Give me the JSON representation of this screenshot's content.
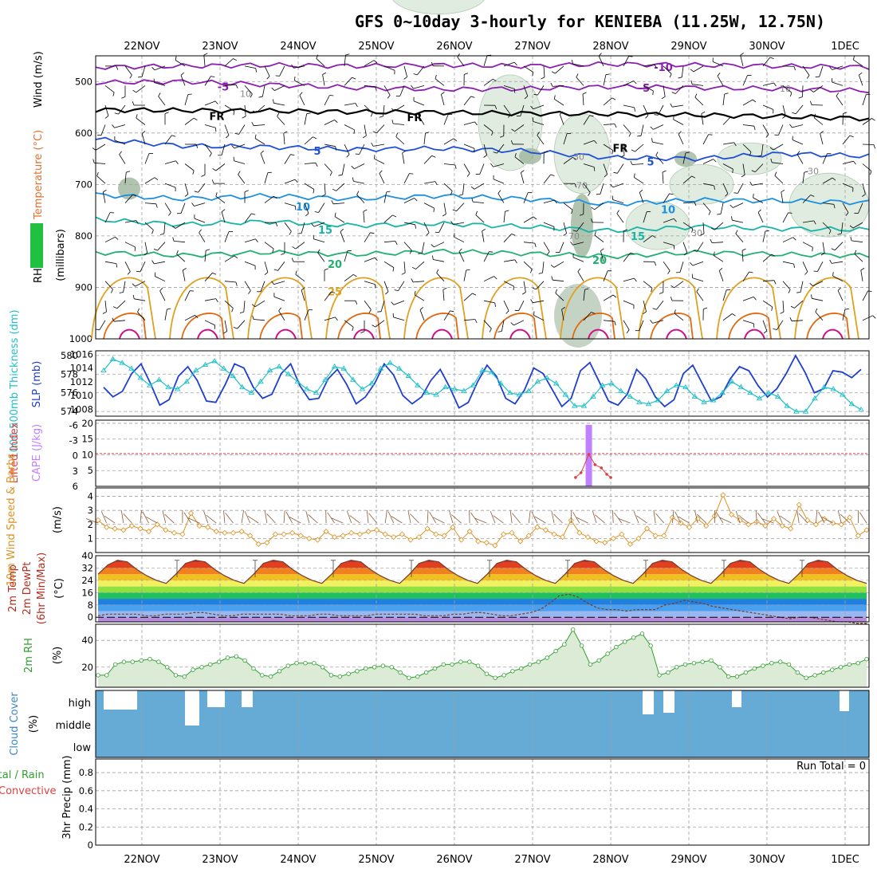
{
  "title": "GFS 0~10day 3-hourly for KENIEBA (11.25W, 12.75N)",
  "dates": [
    "22NOV",
    "23NOV",
    "24NOV",
    "25NOV",
    "26NOV",
    "27NOV",
    "28NOV",
    "29NOV",
    "30NOV",
    "1DEC"
  ],
  "run_total": "Run Total = 0",
  "colors": {
    "purple": "#8a1fb0",
    "black": "#000000",
    "blue": "#1f4fd8",
    "lightblue": "#1e90e0",
    "teal": "#18b4a8",
    "green": "#20b070",
    "orange": "#e0a020",
    "darkorange": "#e06a10",
    "magenta": "#d0108a",
    "rh_fill": "#dcebdc",
    "rh_dark": "#9cb59c",
    "cloud": "#66aad6",
    "cape": "#c080ff",
    "slp": "#1f3fd0",
    "thick": "#20c0c8",
    "wind": "#e09020",
    "rh2m": "#30a030",
    "grid": "#a0a0a0"
  },
  "chart_data": [
    {
      "type": "contour",
      "panel": "upper-air",
      "ylabel_parts": [
        "RH (%)",
        "Temperature (°C)",
        "Wind (m/s)"
      ],
      "ylabel_right": "(millibars)",
      "ylim": [
        1000,
        450
      ],
      "yticks": [
        500,
        600,
        700,
        800,
        900,
        1000
      ],
      "contour_labels": {
        "temperature": [
          "-10",
          "-5",
          "FR",
          "5",
          "10",
          "15",
          "20",
          "25"
        ],
        "rh": [
          "10",
          "30",
          "70",
          "70",
          "30"
        ]
      },
      "isotherms": [
        {
          "name": "-10",
          "level": [
            472,
            470,
            468,
            470,
            468,
            470,
            466,
            468,
            470,
            472
          ]
        },
        {
          "name": "-5",
          "level": [
            502,
            500,
            506,
            512,
            515,
            514,
            510,
            512,
            514,
            518
          ]
        },
        {
          "name": "FR",
          "level": [
            555,
            556,
            557,
            559,
            560,
            562,
            563,
            565,
            568,
            572
          ]
        },
        {
          "name": "5",
          "level": [
            612,
            625,
            627,
            632,
            630,
            635,
            648,
            650,
            640,
            645
          ]
        },
        {
          "name": "10",
          "level": [
            720,
            728,
            722,
            728,
            722,
            728,
            738,
            730,
            732,
            735
          ]
        },
        {
          "name": "15",
          "level": [
            768,
            778,
            772,
            780,
            776,
            782,
            790,
            782,
            786,
            788
          ]
        },
        {
          "name": "20",
          "level": [
            832,
            838,
            832,
            836,
            830,
            834,
            840,
            832,
            836,
            838
          ]
        }
      ]
    },
    {
      "type": "line",
      "panel": "thickness-slp",
      "ylabel_left": "1000-500mb Thickness (dm)",
      "ylabel_right": "SLP (mb)",
      "yticks_left": [
        574,
        576,
        578,
        580
      ],
      "yticks_right": [
        1008,
        1010,
        1012,
        1014,
        1016
      ],
      "series": [
        {
          "name": "SLP (mb)",
          "values": [
            1011.2,
            1009.8,
            1010.6,
            1013.2,
            1014.6,
            1011.8,
            1008.6,
            1009.4,
            1012.8,
            1014.2,
            1012.2,
            1009.2,
            1009.0,
            1011.6,
            1014.6,
            1014.0,
            1011.2,
            1009.6,
            1010.2,
            1013.2,
            1014.6,
            1011.4,
            1009.4,
            1009.6,
            1012.4,
            1013.8,
            1011.6,
            1008.8,
            1009.8,
            1011.8,
            1014.6,
            1013.0,
            1010.0,
            1008.8,
            1009.8,
            1012.2,
            1013.8,
            1011.2,
            1008.2,
            1009.0,
            1012.0,
            1014.4,
            1012.8,
            1009.6,
            1008.8,
            1010.8,
            1014.0,
            1013.2,
            1010.8,
            1008.4,
            1009.6,
            1013.6,
            1014.8,
            1012.0,
            1009.2,
            1008.6,
            1010.2,
            1013.8,
            1012.4,
            1009.8,
            1008.4,
            1009.4,
            1013.2,
            1014.4,
            1011.8,
            1009.2,
            1009.8,
            1012.4,
            1014.2,
            1013.6,
            1011.4,
            1009.8,
            1011.0,
            1013.2,
            1015.8,
            1013.4,
            1010.4,
            1011.0,
            1013.6,
            1013.4,
            1012.6,
            1013.8
          ]
        },
        {
          "name": "1000-500mb Thickness (dm)",
          "values": [
            578.4,
            579.6,
            579.2,
            578.6,
            577.6,
            576.8,
            577.4,
            576.6,
            576.4,
            577.2,
            578.4,
            579.0,
            579.4,
            578.6,
            577.8,
            576.6,
            576.0,
            577.2,
            578.4,
            578.8,
            578.0,
            577.2,
            576.4,
            576.0,
            577.4,
            578.8,
            578.6,
            577.4,
            576.4,
            577.0,
            578.6,
            579.2,
            578.6,
            577.8,
            576.8,
            576.0,
            575.8,
            576.6,
            576.4,
            576.2,
            576.8,
            578.4,
            578.2,
            577.0,
            576.0,
            575.8,
            576.2,
            577.2,
            577.6,
            577.0,
            575.8,
            574.6,
            574.6,
            575.6,
            576.8,
            577.0,
            576.2,
            575.6,
            575.0,
            574.8,
            575.2,
            576.2,
            576.8,
            576.6,
            575.6,
            575.0,
            575.2,
            576.0,
            577.2,
            576.6,
            576.0,
            575.4,
            576.0,
            575.6,
            574.6,
            574.0,
            574.0,
            575.4,
            576.6,
            576.4,
            575.8,
            574.8,
            574.2
          ]
        }
      ]
    },
    {
      "type": "bar",
      "panel": "cape-li",
      "ylabel_left": "Lifted Index",
      "ylabel_right": "CAPE (J/kg)",
      "yticks_left": [
        "-6",
        "-3",
        "0",
        "3",
        "6"
      ],
      "yticks_right": [
        5,
        10,
        15,
        20
      ],
      "cape_bar": {
        "date_index": 5.72,
        "value": 19.5
      },
      "lifted_index_series": [
        {
          "t": 5.55,
          "v": 6
        },
        {
          "t": 5.62,
          "v": 4.8
        },
        {
          "t": 5.72,
          "v": 0.2
        },
        {
          "t": 5.8,
          "v": 2.8
        },
        {
          "t": 5.88,
          "v": 3.6
        },
        {
          "t": 5.95,
          "v": 5.2
        },
        {
          "t": 6.0,
          "v": 6
        }
      ],
      "li_reference_line": 0
    },
    {
      "type": "line",
      "panel": "wind",
      "ylabel_left": "10m Wind Speed & Barbs",
      "ylabel_unit": "(m/s)",
      "yticks": [
        1,
        2,
        3,
        4
      ],
      "series": [
        {
          "name": "10m Wind Speed",
          "values": [
            2.3,
            1.8,
            1.7,
            1.6,
            1.9,
            1.7,
            1.5,
            2.0,
            1.6,
            1.4,
            1.3,
            2.8,
            1.9,
            1.8,
            1.5,
            1.4,
            1.4,
            1.5,
            1.2,
            0.6,
            0.7,
            1.3,
            1.3,
            1.4,
            1.2,
            1.0,
            0.9,
            1.5,
            1.1,
            1.2,
            1.4,
            1.3,
            1.5,
            1.6,
            1.3,
            1.1,
            1.3,
            0.9,
            1.1,
            1.7,
            1.3,
            1.2,
            1.8,
            0.9,
            1.5,
            0.8,
            0.7,
            0.5,
            1.3,
            1.4,
            0.8,
            1.2,
            1.8,
            1.6,
            1.3,
            1.1,
            2.3,
            1.4,
            1.1,
            0.8,
            0.7,
            1.0,
            1.3,
            0.6,
            1.0,
            1.7,
            1.2,
            1.2,
            2.5,
            2.1,
            1.8,
            2.4,
            1.9,
            2.6,
            4.1,
            2.7,
            2.3,
            2.0,
            2.2,
            1.9,
            2.4,
            1.9,
            1.7,
            3.4,
            2.3,
            2.0,
            2.4,
            2.1,
            2.0,
            2.5,
            1.2,
            1.6
          ]
        }
      ]
    },
    {
      "type": "area",
      "panel": "temperature",
      "ylabel_parts": [
        "2m Temp",
        "2m DewPt",
        "(6hr Min/Max)"
      ],
      "ylabel_unit": "(°C)",
      "yticks": [
        0,
        8,
        16,
        24,
        32,
        40
      ],
      "series": [
        {
          "name": "2m Temp",
          "values": [
            28,
            34,
            37,
            36,
            31,
            27,
            24,
            22,
            28,
            35,
            37,
            36,
            31,
            27,
            24,
            22,
            28,
            35,
            37,
            36,
            31,
            27,
            24,
            22,
            28,
            35,
            37,
            36,
            31,
            27,
            24,
            22,
            28,
            35,
            37,
            36,
            31,
            27,
            24,
            22,
            28,
            35,
            37,
            36,
            31,
            27,
            24,
            22,
            28,
            35,
            37,
            36,
            31,
            27,
            24,
            22,
            28,
            35,
            37,
            36,
            31,
            27,
            24,
            22,
            28,
            35,
            37,
            36,
            31,
            27,
            24,
            22,
            28,
            35,
            37,
            36,
            31,
            27,
            24,
            22
          ]
        },
        {
          "name": "2m DewPt",
          "values": [
            1,
            2,
            2,
            2,
            2,
            1,
            1,
            2,
            2,
            2,
            3,
            3,
            2,
            1,
            1,
            2,
            2,
            2,
            2,
            2,
            1,
            1,
            1,
            2,
            2,
            1,
            1,
            1,
            1,
            2,
            2,
            2,
            2,
            2,
            1,
            1,
            1,
            2,
            2,
            3,
            3,
            2,
            1,
            1,
            2,
            3,
            5,
            9,
            14,
            15,
            13,
            9,
            6,
            5,
            5,
            4,
            5,
            5,
            5,
            8,
            9,
            11,
            10,
            9,
            7,
            6,
            5,
            4,
            3,
            2,
            1,
            0,
            -1,
            0,
            0,
            -1,
            -2,
            -3,
            -3,
            -4,
            -4
          ]
        }
      ]
    },
    {
      "type": "area",
      "panel": "rh",
      "ylabel_left": "2m RH",
      "ylabel_unit": "(%)",
      "yticks": [
        20,
        40
      ],
      "series": [
        {
          "name": "2m RH",
          "values": [
            14,
            14,
            22,
            24,
            24,
            25,
            26,
            24,
            20,
            14,
            13,
            18,
            20,
            22,
            24,
            27,
            28,
            25,
            19,
            14,
            13,
            17,
            21,
            23,
            23,
            23,
            20,
            14,
            13,
            15,
            17,
            19,
            20,
            21,
            20,
            16,
            12,
            13,
            16,
            19,
            22,
            22,
            24,
            24,
            21,
            15,
            12,
            14,
            17,
            19,
            22,
            24,
            27,
            32,
            37,
            48,
            36,
            22,
            25,
            30,
            35,
            39,
            42,
            45,
            36,
            14,
            16,
            20,
            22,
            23,
            24,
            25,
            20,
            13,
            13,
            16,
            19,
            21,
            23,
            24,
            22,
            16,
            12,
            14,
            16,
            18,
            20,
            22,
            23,
            26
          ]
        }
      ]
    },
    {
      "type": "area",
      "panel": "cloud",
      "ylabel_left": "Cloud Cover",
      "ylabel_unit": "(%)",
      "layers": [
        "high",
        "middle",
        "low"
      ]
    },
    {
      "type": "bar",
      "panel": "precip",
      "ylabel_parts": [
        "Total / Rain",
        "Convective"
      ],
      "ylabel_unit": "3hr Precip (mm)",
      "yticks": [
        "0",
        "0.2",
        "0.4",
        "0.6",
        "0.8"
      ],
      "values": []
    }
  ]
}
